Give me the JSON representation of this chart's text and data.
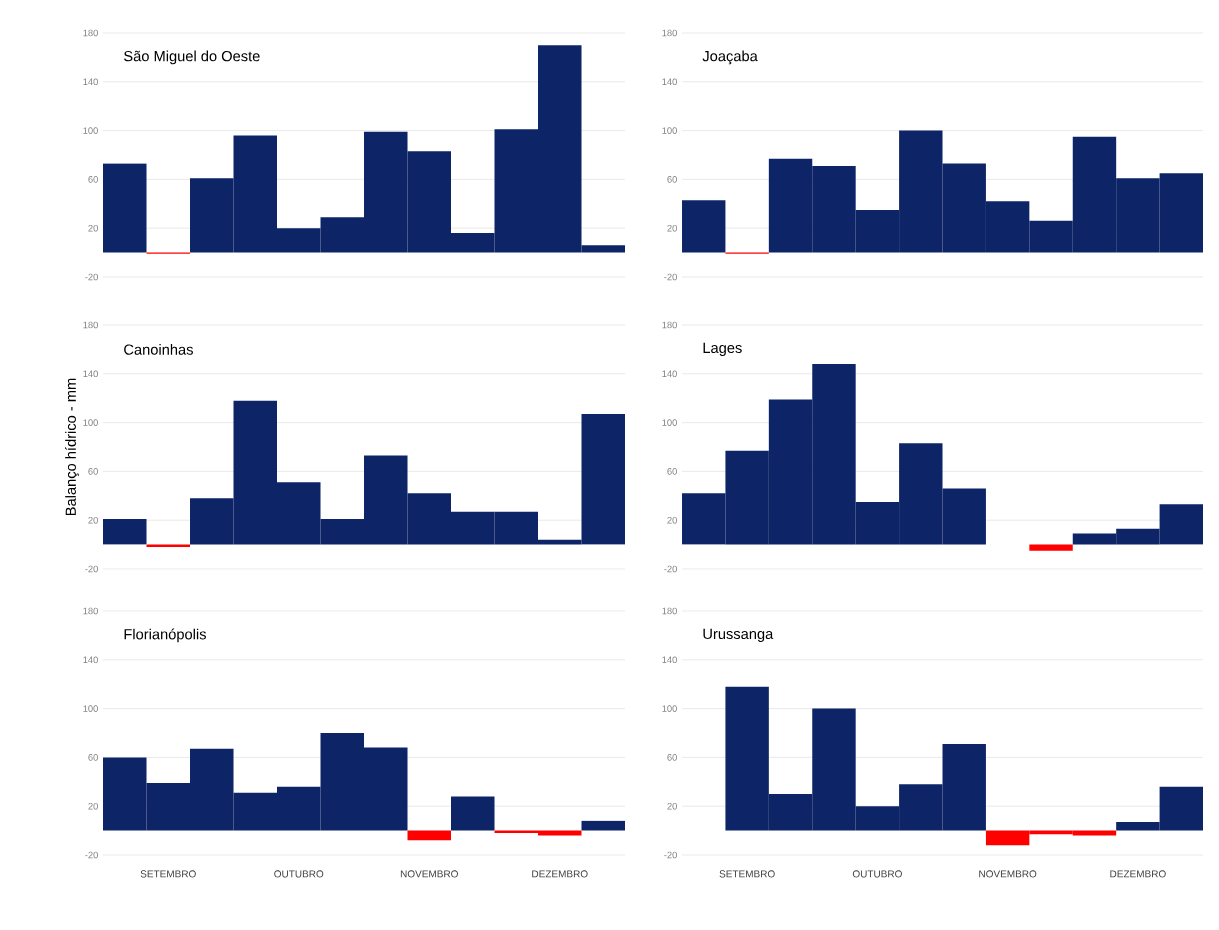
{
  "chart_data": [
    {
      "type": "bar",
      "title": "São Miguel do Oeste",
      "categories": [
        null,
        null,
        null,
        null,
        null,
        null,
        null,
        null,
        null,
        null,
        null,
        null
      ],
      "values": [
        73,
        -1,
        61,
        96,
        20,
        29,
        99,
        83,
        16,
        101,
        170,
        6
      ],
      "colors": [
        "#0d2466",
        "#ff0000",
        "#0d2466",
        "#0d2466",
        "#0d2466",
        "#0d2466",
        "#0d2466",
        "#0d2466",
        "#0d2466",
        "#0d2466",
        "#0d2466",
        "#0d2466"
      ],
      "ylim": [
        -20,
        180
      ],
      "yticks": [
        -20,
        20,
        60,
        100,
        140,
        180
      ],
      "grid": "y",
      "tick_labels": "y"
    },
    {
      "type": "bar",
      "title": "Joaçaba",
      "categories": [
        null,
        null,
        null,
        null,
        null,
        null,
        null,
        null,
        null,
        null,
        null,
        null
      ],
      "values": [
        43,
        -1,
        77,
        71,
        35,
        100,
        73,
        42,
        26,
        95,
        61,
        65
      ],
      "colors": [
        "#0d2466",
        "#ff0000",
        "#0d2466",
        "#0d2466",
        "#0d2466",
        "#0d2466",
        "#0d2466",
        "#0d2466",
        "#0d2466",
        "#0d2466",
        "#0d2466",
        "#0d2466"
      ],
      "ylim": [
        -20,
        180
      ],
      "yticks": [
        -20,
        20,
        60,
        100,
        140,
        180
      ],
      "grid": "y",
      "tick_labels": "y"
    },
    {
      "type": "bar",
      "title": "Canoinhas",
      "ylabel": "Balanço hídrico - mm",
      "categories": [
        null,
        null,
        null,
        null,
        null,
        null,
        null,
        null,
        null,
        null,
        null,
        null
      ],
      "values": [
        21,
        -2,
        38,
        118,
        51,
        21,
        73,
        42,
        27,
        27,
        4,
        107
      ],
      "colors": [
        "#0d2466",
        "#ff0000",
        "#0d2466",
        "#0d2466",
        "#0d2466",
        "#0d2466",
        "#0d2466",
        "#0d2466",
        "#0d2466",
        "#0d2466",
        "#0d2466",
        "#0d2466"
      ],
      "ylim": [
        -20,
        180
      ],
      "yticks": [
        -20,
        20,
        60,
        100,
        140,
        180
      ],
      "grid": "y",
      "tick_labels": "y"
    },
    {
      "type": "bar",
      "title": "Lages",
      "categories": [
        null,
        null,
        null,
        null,
        null,
        null,
        null,
        null,
        null,
        null,
        null,
        null
      ],
      "values": [
        42,
        77,
        119,
        148,
        35,
        83,
        46,
        null,
        -5,
        9,
        13,
        33
      ],
      "colors": [
        "#0d2466",
        "#0d2466",
        "#0d2466",
        "#0d2466",
        "#0d2466",
        "#0d2466",
        "#0d2466",
        "#0d2466",
        "#ff0000",
        "#0d2466",
        "#0d2466",
        "#0d2466"
      ],
      "ylim": [
        -20,
        180
      ],
      "yticks": [
        -20,
        20,
        60,
        100,
        140,
        180
      ],
      "grid": "y",
      "tick_labels": "y"
    },
    {
      "type": "bar",
      "title": "Florianópolis",
      "categories": [
        null,
        "SETEMBRO",
        null,
        null,
        "OUTUBRO",
        null,
        null,
        "NOVEMBRO",
        null,
        null,
        "DEZEMBRO",
        null
      ],
      "values": [
        60,
        39,
        67,
        31,
        36,
        80,
        68,
        -8,
        28,
        -2,
        -4,
        8
      ],
      "colors": [
        "#0d2466",
        "#0d2466",
        "#0d2466",
        "#0d2466",
        "#0d2466",
        "#0d2466",
        "#0d2466",
        "#ff0000",
        "#0d2466",
        "#ff0000",
        "#ff0000",
        "#0d2466"
      ],
      "ylim": [
        -20,
        180
      ],
      "yticks": [
        -20,
        20,
        60,
        100,
        140,
        180
      ],
      "grid": "y"
    },
    {
      "type": "bar",
      "title": "Urussanga",
      "categories": [
        null,
        "SETEMBRO",
        null,
        null,
        "OUTUBRO",
        null,
        null,
        "NOVEMBRO",
        null,
        null,
        "DEZEMBRO",
        null
      ],
      "values": [
        null,
        118,
        30,
        100,
        20,
        38,
        71,
        -12,
        -3,
        -4,
        7,
        36
      ],
      "colors": [
        "#0d2466",
        "#0d2466",
        "#0d2466",
        "#0d2466",
        "#0d2466",
        "#0d2466",
        "#0d2466",
        "#ff0000",
        "#ff0000",
        "#ff0000",
        "#0d2466",
        "#0d2466"
      ],
      "ylim": [
        -20,
        180
      ],
      "yticks": [
        -20,
        20,
        60,
        100,
        140,
        180
      ],
      "grid": "y"
    }
  ]
}
